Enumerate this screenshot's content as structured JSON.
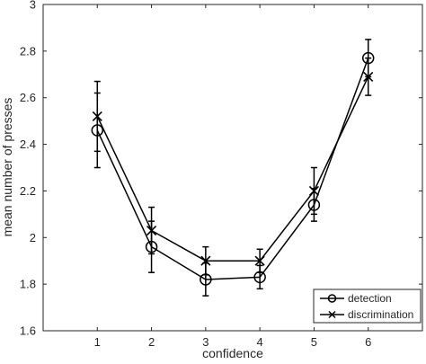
{
  "chart_data": {
    "type": "line",
    "xlabel": "confidence",
    "ylabel": "mean number of presses",
    "x": [
      1,
      2,
      3,
      4,
      5,
      6
    ],
    "xlim": [
      0,
      7
    ],
    "ylim": [
      1.6,
      3.0
    ],
    "x_ticks": [
      "1",
      "2",
      "3",
      "4",
      "5",
      "6"
    ],
    "y_ticks": [
      "1.6",
      "1.8",
      "2",
      "2.2",
      "2.4",
      "2.6",
      "2.8",
      "3"
    ],
    "grid": false,
    "legend_position": "bottom-right",
    "series": [
      {
        "name": "detection",
        "marker": "circle",
        "color": "#000000",
        "values": [
          2.46,
          1.96,
          1.82,
          1.83,
          2.14,
          2.77
        ],
        "error": [
          0.16,
          0.11,
          0.07,
          0.05,
          0.07,
          0.08
        ]
      },
      {
        "name": "discrimination",
        "marker": "x",
        "color": "#000000",
        "values": [
          2.52,
          2.03,
          1.9,
          1.9,
          2.2,
          2.69
        ],
        "error": [
          0.15,
          0.1,
          0.06,
          0.05,
          0.1,
          0.08
        ]
      }
    ]
  }
}
